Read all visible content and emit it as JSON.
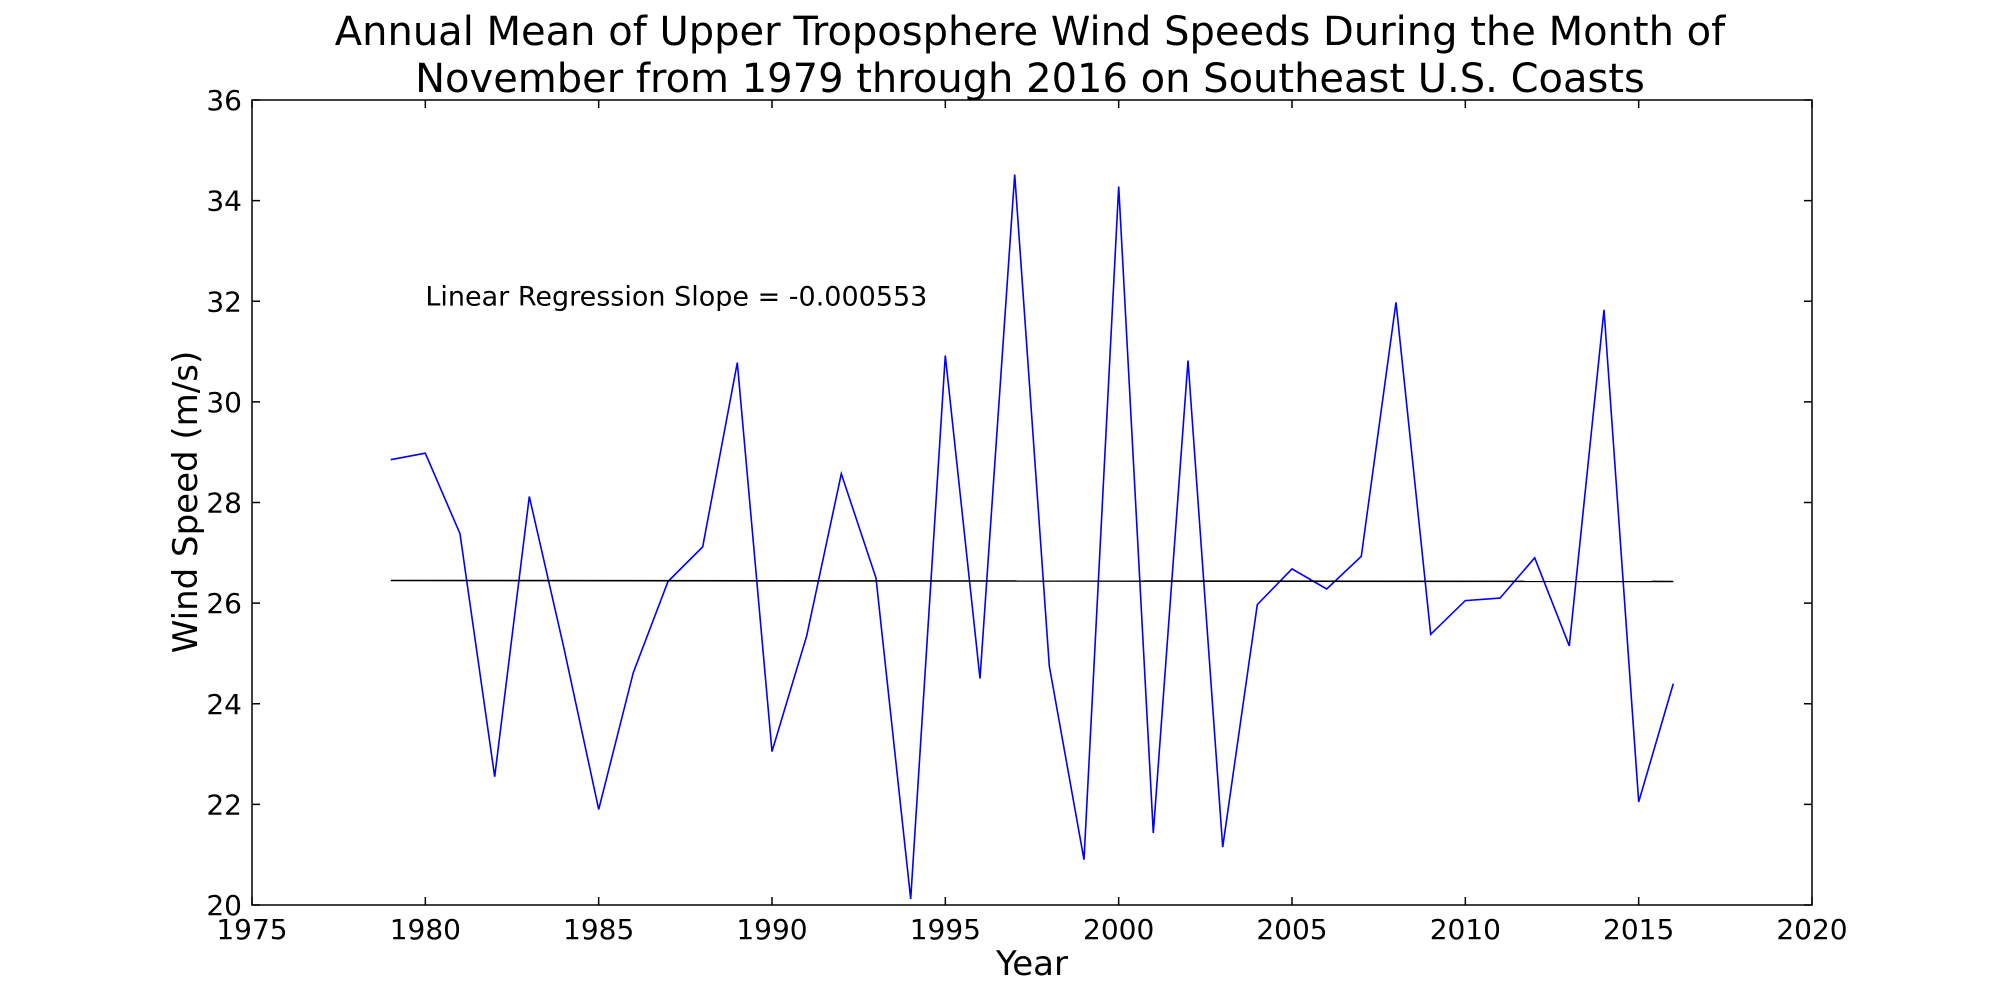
{
  "chart_data": {
    "type": "line",
    "title_lines": [
      "Annual Mean of Upper Troposphere Wind Speeds During the Month of",
      "November from 1979 through 2016 on Southeast U.S. Coasts"
    ],
    "xlabel": "Year",
    "ylabel": "Wind Speed (m/s)",
    "xlim": [
      1975,
      2020
    ],
    "ylim": [
      20,
      36
    ],
    "xticks": [
      1975,
      1980,
      1985,
      1990,
      1995,
      2000,
      2005,
      2010,
      2015,
      2020
    ],
    "yticks": [
      20,
      22,
      24,
      26,
      28,
      30,
      32,
      34,
      36
    ],
    "grid": false,
    "annotation": {
      "text": "Linear Regression Slope = -0.000553",
      "x": 1980,
      "y": 32
    },
    "series": [
      {
        "color": "#0000ff",
        "x": [
          1979,
          1980,
          1981,
          1982,
          1983,
          1984,
          1985,
          1986,
          1987,
          1988,
          1989,
          1990,
          1991,
          1992,
          1993,
          1994,
          1995,
          1996,
          1997,
          1998,
          1999,
          2000,
          2001,
          2002,
          2003,
          2004,
          2005,
          2006,
          2007,
          2008,
          2009,
          2010,
          2011,
          2012,
          2013,
          2014,
          2015,
          2016
        ],
        "values": [
          28.85,
          28.98,
          27.38,
          22.55,
          28.12,
          25.1,
          21.9,
          24.62,
          26.43,
          27.12,
          30.78,
          23.05,
          25.35,
          28.57,
          26.5,
          20.12,
          30.92,
          24.5,
          34.52,
          24.75,
          20.9,
          34.28,
          21.43,
          30.82,
          21.15,
          25.97,
          26.68,
          26.28,
          26.93,
          31.98,
          25.38,
          26.05,
          26.1,
          26.9,
          25.15,
          31.83,
          22.05,
          24.4
        ]
      },
      {
        "color": "#000000",
        "x": [
          1979,
          2016
        ],
        "values": [
          26.45,
          26.43
        ]
      }
    ]
  }
}
